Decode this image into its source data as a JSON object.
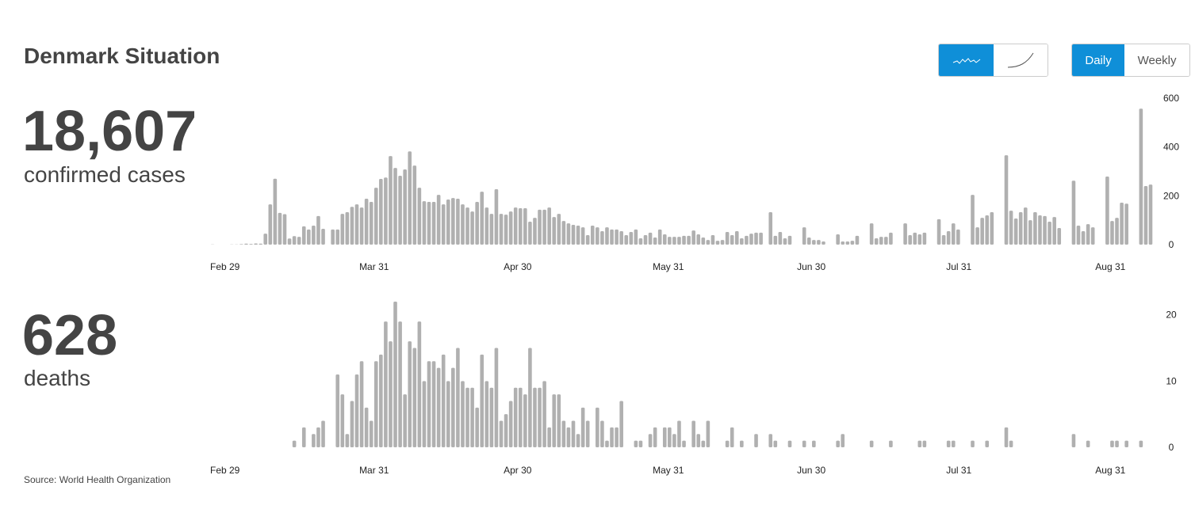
{
  "header": {
    "title": "Denmark Situation",
    "toggles": [
      "Daily",
      "Weekly"
    ]
  },
  "summary": [
    {
      "value": "18,607",
      "label": "confirmed cases"
    },
    {
      "value": "628",
      "label": "deaths"
    }
  ],
  "source": "Source: World Health Organization",
  "chart_data": [
    {
      "type": "bar",
      "color": "#b0b0b0",
      "ylim": [
        0,
        600
      ],
      "yticks": [
        0,
        200,
        400,
        600
      ],
      "categories": [
        "Feb 29",
        null,
        null,
        null,
        null,
        null,
        null,
        null,
        null,
        null,
        null,
        null,
        null,
        null,
        null,
        null,
        null,
        null,
        null,
        null,
        null,
        null,
        null,
        null,
        null,
        null,
        null,
        null,
        null,
        null,
        null,
        "Mar 31",
        null,
        null,
        null,
        null,
        null,
        null,
        null,
        null,
        null,
        null,
        null,
        null,
        null,
        null,
        null,
        null,
        null,
        null,
        null,
        null,
        null,
        null,
        null,
        null,
        null,
        null,
        null,
        null,
        null,
        "Apr 30",
        null,
        null,
        null,
        null,
        null,
        null,
        null,
        null,
        null,
        null,
        null,
        null,
        null,
        null,
        null,
        null,
        null,
        null,
        null,
        null,
        null,
        null,
        null,
        null,
        null,
        null,
        null,
        null,
        null,
        null,
        "May 31",
        null,
        null,
        null,
        null,
        null,
        null,
        null,
        null,
        null,
        null,
        null,
        null,
        null,
        null,
        null,
        null,
        null,
        null,
        null,
        null,
        null,
        null,
        null,
        null,
        null,
        null,
        null,
        null,
        null,
        "Jun 30",
        null,
        null,
        null,
        null,
        null,
        null,
        null,
        null,
        null,
        null,
        null,
        null,
        null,
        null,
        null,
        null,
        null,
        null,
        null,
        null,
        null,
        null,
        null,
        null,
        null,
        null,
        null,
        null,
        null,
        null,
        "Jul 31",
        null,
        null,
        null,
        null,
        null,
        null,
        null,
        null,
        null,
        null,
        null,
        null,
        null,
        null,
        null,
        null,
        null,
        null,
        null,
        null,
        null,
        null,
        null,
        null,
        null,
        null,
        null,
        null,
        null,
        null,
        "Aug 31",
        null,
        null,
        null,
        null,
        null,
        null,
        null,
        null,
        null,
        null,
        null
      ],
      "values": [
        1,
        0,
        0,
        0,
        1,
        1,
        2,
        4,
        3,
        5,
        4,
        45,
        165,
        270,
        130,
        125,
        25,
        35,
        32,
        75,
        62,
        78,
        117,
        65,
        0,
        62,
        62,
        126,
        133,
        155,
        165,
        152,
        188,
        175,
        233,
        269,
        275,
        363,
        314,
        282,
        308,
        382,
        324,
        233,
        178,
        175,
        175,
        204,
        165,
        185,
        191,
        188,
        165,
        152,
        136,
        175,
        217,
        152,
        126,
        227,
        126,
        123,
        136,
        152,
        149,
        149,
        94,
        110,
        143,
        143,
        152,
        113,
        126,
        97,
        87,
        81,
        78,
        71,
        39,
        78,
        71,
        55,
        71,
        62,
        62,
        55,
        39,
        52,
        62,
        26,
        39,
        49,
        29,
        62,
        42,
        32,
        32,
        32,
        36,
        36,
        58,
        42,
        29,
        19,
        39,
        16,
        19,
        52,
        39,
        55,
        26,
        36,
        45,
        49,
        49,
        0,
        133,
        36,
        52,
        26,
        36,
        0,
        0,
        71,
        29,
        19,
        19,
        13,
        0,
        0,
        42,
        13,
        13,
        16,
        36,
        0,
        0,
        87,
        26,
        32,
        32,
        49,
        0,
        0,
        87,
        39,
        49,
        42,
        49,
        0,
        0,
        104,
        39,
        55,
        87,
        62,
        0,
        0,
        204,
        71,
        110,
        120,
        133,
        0,
        0,
        366,
        139,
        107,
        133,
        152,
        100,
        133,
        120,
        117,
        94,
        113,
        68,
        0,
        0,
        262,
        78,
        55,
        84,
        71,
        0,
        0,
        279,
        97,
        110,
        172,
        168,
        0,
        0,
        557,
        240,
        246
      ]
    },
    {
      "type": "bar",
      "color": "#b0b0b0",
      "ylim": [
        0,
        22
      ],
      "yticks": [
        0,
        10,
        20
      ],
      "categories": [
        "Feb 29",
        null,
        null,
        null,
        null,
        null,
        null,
        null,
        null,
        null,
        null,
        null,
        null,
        null,
        null,
        null,
        null,
        null,
        null,
        null,
        null,
        null,
        null,
        null,
        null,
        null,
        null,
        null,
        null,
        null,
        null,
        "Mar 31",
        null,
        null,
        null,
        null,
        null,
        null,
        null,
        null,
        null,
        null,
        null,
        null,
        null,
        null,
        null,
        null,
        null,
        null,
        null,
        null,
        null,
        null,
        null,
        null,
        null,
        null,
        null,
        null,
        null,
        "Apr 30",
        null,
        null,
        null,
        null,
        null,
        null,
        null,
        null,
        null,
        null,
        null,
        null,
        null,
        null,
        null,
        null,
        null,
        null,
        null,
        null,
        null,
        null,
        null,
        null,
        null,
        null,
        null,
        null,
        null,
        null,
        "May 31",
        null,
        null,
        null,
        null,
        null,
        null,
        null,
        null,
        null,
        null,
        null,
        null,
        null,
        null,
        null,
        null,
        null,
        null,
        null,
        null,
        null,
        null,
        null,
        null,
        null,
        null,
        null,
        null,
        null,
        "Jun 30",
        null,
        null,
        null,
        null,
        null,
        null,
        null,
        null,
        null,
        null,
        null,
        null,
        null,
        null,
        null,
        null,
        null,
        null,
        null,
        null,
        null,
        null,
        null,
        null,
        null,
        null,
        null,
        null,
        null,
        null,
        "Jul 31",
        null,
        null,
        null,
        null,
        null,
        null,
        null,
        null,
        null,
        null,
        null,
        null,
        null,
        null,
        null,
        null,
        null,
        null,
        null,
        null,
        null,
        null,
        null,
        null,
        null,
        null,
        null,
        null,
        null,
        null,
        "Aug 31",
        null,
        null,
        null,
        null,
        null,
        null,
        null,
        null,
        null,
        null,
        null
      ],
      "values": [
        0,
        0,
        0,
        0,
        0,
        0,
        0,
        0,
        0,
        0,
        0,
        0,
        0,
        0,
        0,
        0,
        0,
        1,
        0,
        3,
        0,
        2,
        3,
        4,
        0,
        0,
        11,
        8,
        2,
        7,
        11,
        13,
        6,
        4,
        13,
        14,
        19,
        16,
        22,
        19,
        8,
        16,
        15,
        19,
        10,
        13,
        13,
        12,
        14,
        10,
        12,
        15,
        10,
        9,
        9,
        6,
        14,
        10,
        9,
        15,
        4,
        5,
        7,
        9,
        9,
        8,
        15,
        9,
        9,
        10,
        3,
        8,
        8,
        4,
        3,
        4,
        2,
        6,
        4,
        0,
        6,
        4,
        1,
        3,
        3,
        7,
        0,
        0,
        1,
        1,
        0,
        2,
        3,
        0,
        3,
        3,
        2,
        4,
        1,
        0,
        4,
        2,
        1,
        4,
        0,
        0,
        0,
        1,
        3,
        0,
        1,
        0,
        0,
        2,
        0,
        0,
        2,
        1,
        0,
        0,
        1,
        0,
        0,
        1,
        0,
        1,
        0,
        0,
        0,
        0,
        1,
        2,
        0,
        0,
        0,
        0,
        0,
        1,
        0,
        0,
        0,
        1,
        0,
        0,
        0,
        0,
        0,
        1,
        1,
        0,
        0,
        0,
        0,
        1,
        1,
        0,
        0,
        0,
        1,
        0,
        0,
        1,
        0,
        0,
        0,
        3,
        1,
        0,
        0,
        0,
        0,
        0,
        0,
        0,
        0,
        0,
        0,
        0,
        0,
        2,
        0,
        0,
        1,
        0,
        0,
        0,
        0,
        1,
        1,
        0,
        1,
        0,
        0,
        1,
        0,
        0
      ]
    }
  ]
}
